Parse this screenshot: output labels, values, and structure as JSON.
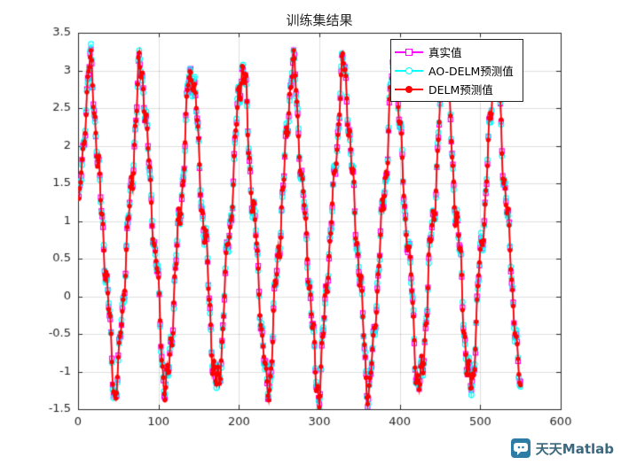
{
  "chart_data": {
    "type": "line",
    "title": "训练集结果",
    "xlabel": "",
    "ylabel": "",
    "xlim": [
      0,
      600
    ],
    "ylim": [
      -1.5,
      3.5
    ],
    "xticks": [
      0,
      100,
      200,
      300,
      400,
      500,
      600
    ],
    "yticks": [
      -1.5,
      -1,
      -0.5,
      0,
      0.5,
      1,
      1.5,
      2,
      2.5,
      3,
      3.5
    ],
    "grid": true,
    "grid_color": "rgba(38,38,38,0.15)",
    "axis_color": "#262626",
    "legend_position": "top-right",
    "x_range": [
      1,
      550
    ],
    "n_points": 550,
    "model": {
      "base": 0.9,
      "amp": 1.9,
      "h3": 0.22,
      "period": 63,
      "peak_x": 15,
      "r1": 0.18,
      "f1": 0.52,
      "r2": 0.12,
      "f2": 1.27,
      "approx_peak_y": 3.1,
      "approx_trough_y": -1.3
    },
    "series": [
      {
        "name": "真实值",
        "color": "#FF00FF",
        "marker": "square-open",
        "line_width": 1.2,
        "deviation": {
          "amp": 0,
          "freq": 0,
          "phase": 0
        }
      },
      {
        "name": "AO-DELM预测值",
        "color": "#00FFFF",
        "marker": "circle-open",
        "line_width": 1.2,
        "deviation": {
          "amp": 0.07,
          "freq": 0.83,
          "phase": 0.7
        }
      },
      {
        "name": "DELM预测值",
        "color": "#FF0000",
        "marker": "circle-filled",
        "line_width": 1.8,
        "deviation": {
          "amp": 0.05,
          "freq": 1.41,
          "phase": 2.3
        }
      }
    ]
  },
  "watermark": {
    "text": "天天Matlab",
    "text_color": "#3b687c",
    "icon_bg": "#2d7ca6"
  }
}
